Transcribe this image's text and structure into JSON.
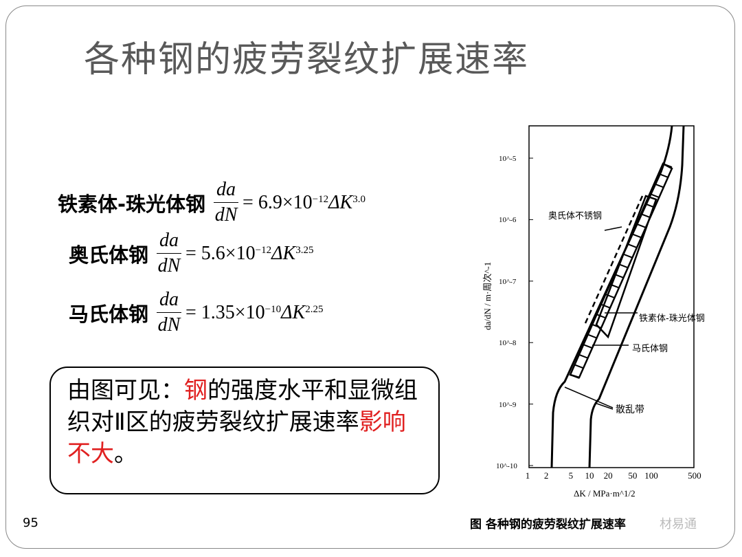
{
  "slide": {
    "title": "各种钢的疲劳裂纹扩展速率",
    "page_number": "95"
  },
  "equations": [
    {
      "label": "铁素体-珠光体钢",
      "numerator": "da",
      "denominator": "dN",
      "rhs": "= 6.9×10",
      "exp10": "−12",
      "dk": " ΔK",
      "expK": "3.0"
    },
    {
      "label": "奥氏体钢",
      "numerator": "da",
      "denominator": "dN",
      "rhs": "= 5.6×10",
      "exp10": "−12",
      "dk": " ΔK",
      "expK": "3.25"
    },
    {
      "label": "马氏体钢",
      "numerator": "da",
      "denominator": "dN",
      "rhs": "= 1.35×10",
      "exp10": "−10",
      "dk": " ΔK",
      "expK": "2.25"
    }
  ],
  "callout": {
    "part1": "由图可见：",
    "part2_red": "钢",
    "part3": "的强度水平和显微组织对Ⅱ区的疲劳裂纹扩展速率",
    "part4_red": "影响不大",
    "part5": "。",
    "accent_color": "#e02020"
  },
  "figure": {
    "caption": "图  各种钢的疲劳裂纹扩展速率",
    "watermark": "材易通",
    "chart_data": {
      "type": "line",
      "xlabel": "ΔK / MPa·m^1/2",
      "ylabel": "da/dN / m·周次^-1",
      "x_scale": "log",
      "y_scale": "log",
      "x_ticks": [
        "1",
        "2",
        "5",
        "10",
        "20",
        "50",
        "100",
        "500"
      ],
      "y_ticks": [
        "10^-5",
        "10^-6",
        "10^-7",
        "10^-8",
        "10^-9",
        "10^-10"
      ],
      "annotations": [
        "奥氏体不锈钢",
        "铁素体-珠光体钢",
        "马氏体钢",
        "散乱带"
      ]
    }
  }
}
